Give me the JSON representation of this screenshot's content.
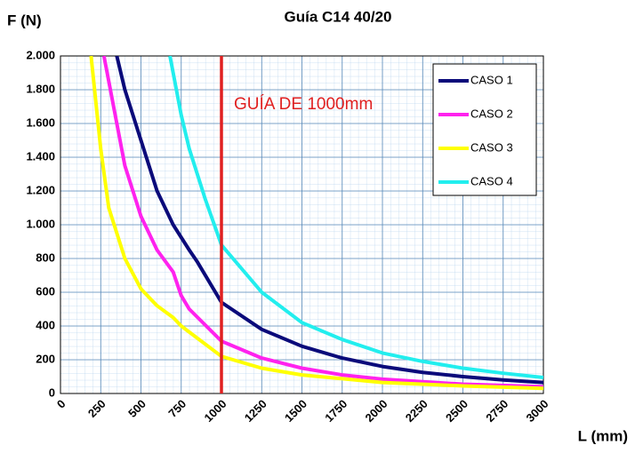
{
  "chart_data": {
    "type": "line",
    "title": "Guía C14 40/20",
    "y_label": "F (N)",
    "x_label": "L (mm)",
    "xlim": [
      0,
      3000
    ],
    "ylim": [
      0,
      2000
    ],
    "xticks": [
      0,
      250,
      500,
      750,
      1000,
      1250,
      1500,
      1750,
      2000,
      2250,
      2500,
      2750,
      3000
    ],
    "yticks": [
      0,
      200,
      400,
      600,
      800,
      {
        "value": 1000,
        "label": "1.000"
      },
      {
        "value": 1200,
        "label": "1.200"
      },
      {
        "value": 1400,
        "label": "1.400"
      },
      {
        "value": 1600,
        "label": "1.600"
      },
      {
        "value": 1800,
        "label": "1.800"
      },
      {
        "value": 2000,
        "label": "2.000"
      }
    ],
    "grid": true,
    "legend": "top-right",
    "annotation": {
      "text": "GUÍA DE 1000mm",
      "x": 1000,
      "color": "#e02020"
    },
    "series": [
      {
        "name": "CASO 1",
        "color": "#0a0a7a",
        "x": [
          350,
          400,
          500,
          600,
          700,
          800,
          850,
          1000,
          1250,
          1500,
          1750,
          2000,
          2250,
          2500,
          2750,
          3000
        ],
        "values": [
          2000,
          1800,
          1500,
          1200,
          1000,
          850,
          780,
          540,
          380,
          280,
          210,
          160,
          125,
          100,
          80,
          65
        ]
      },
      {
        "name": "CASO 2",
        "color": "#ff22ee",
        "x": [
          270,
          350,
          400,
          500,
          600,
          700,
          750,
          800,
          1000,
          1250,
          1500,
          1750,
          2000,
          2500,
          3000
        ],
        "values": [
          2000,
          1600,
          1350,
          1050,
          850,
          720,
          580,
          500,
          310,
          210,
          150,
          110,
          85,
          55,
          40
        ]
      },
      {
        "name": "CASO 3",
        "color": "#ffff00",
        "x": [
          190,
          250,
          300,
          400,
          500,
          600,
          700,
          750,
          1000,
          1250,
          1500,
          2000,
          2500,
          3000
        ],
        "values": [
          2000,
          1450,
          1100,
          800,
          620,
          520,
          450,
          400,
          220,
          150,
          110,
          65,
          45,
          30
        ]
      },
      {
        "name": "CASO 4",
        "color": "#22eeee",
        "x": [
          680,
          750,
          800,
          900,
          1000,
          1250,
          1500,
          1750,
          2000,
          2250,
          2500,
          2750,
          3000
        ],
        "values": [
          2000,
          1650,
          1450,
          1150,
          880,
          600,
          420,
          320,
          240,
          190,
          150,
          120,
          95
        ]
      }
    ]
  }
}
